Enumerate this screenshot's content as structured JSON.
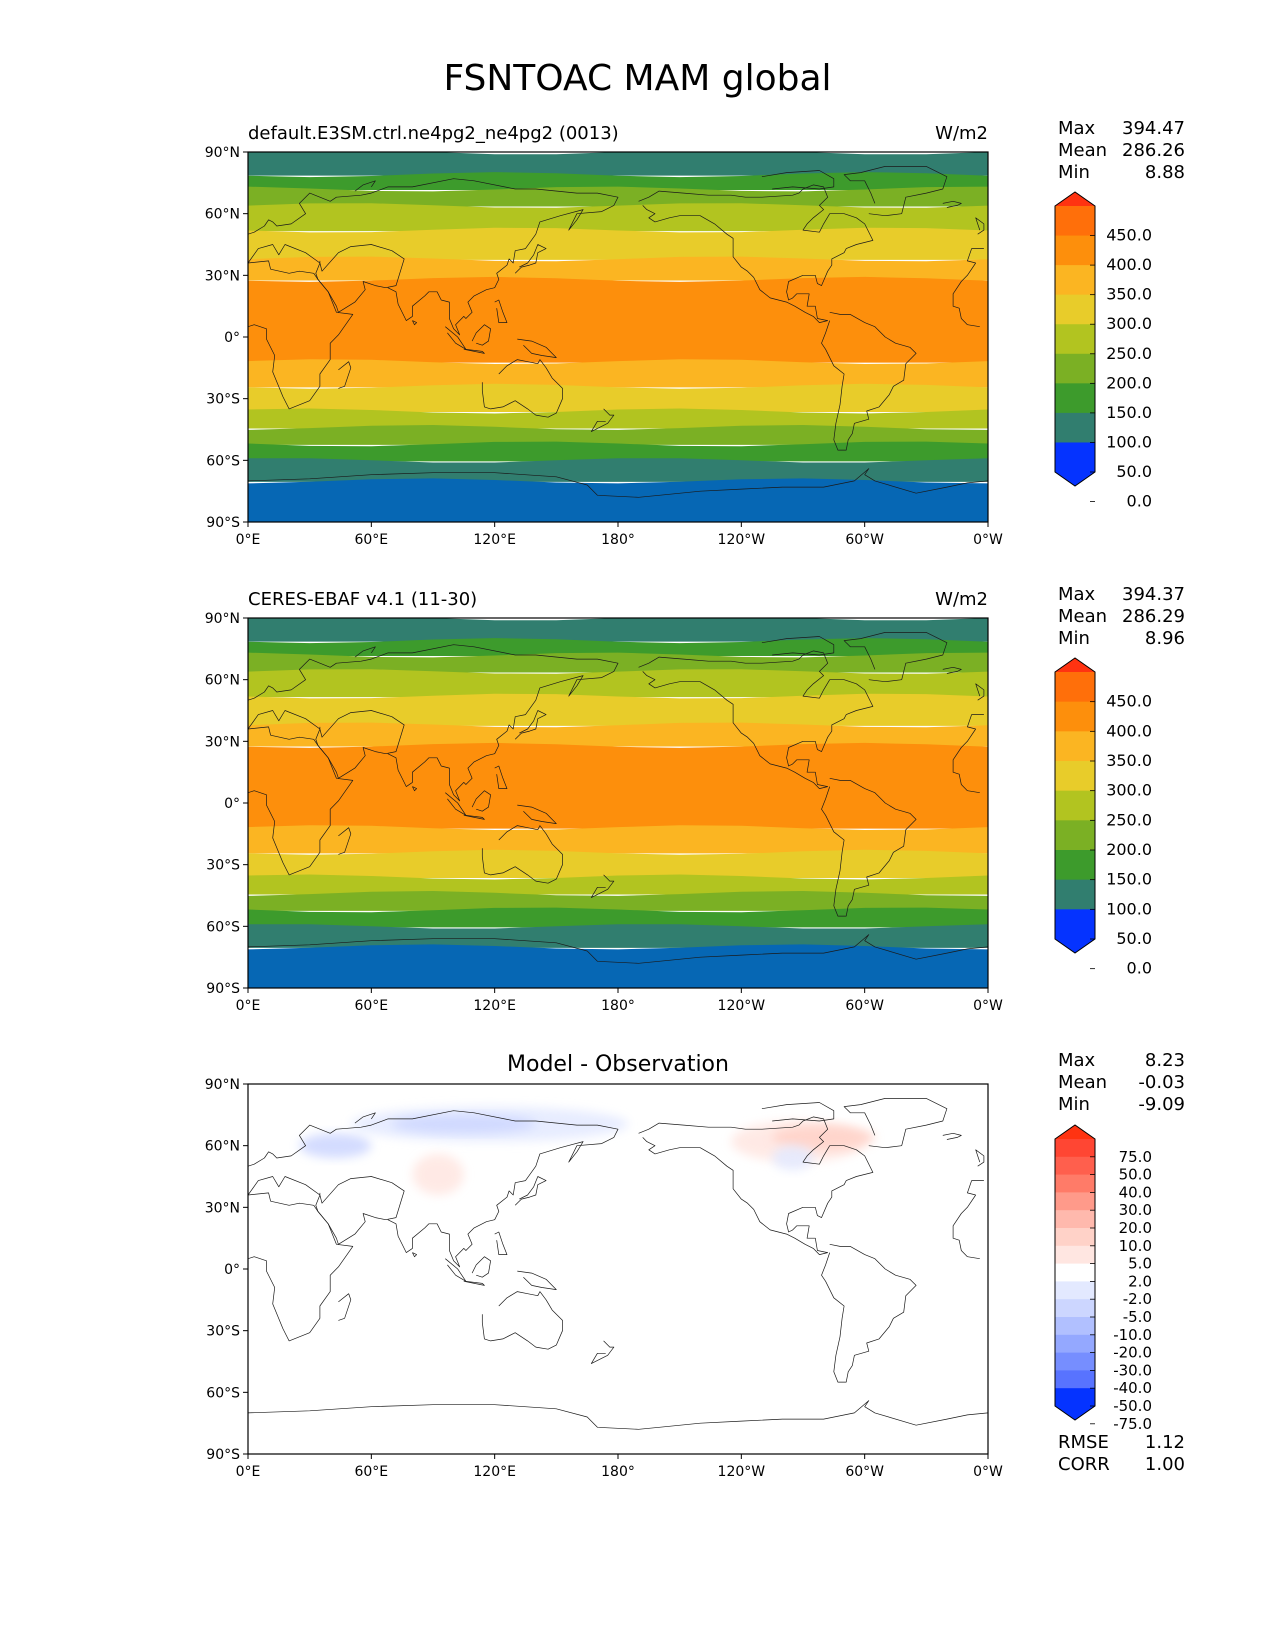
{
  "figure_title": "FSNTOAC MAM global",
  "x_ticks": [
    "0°E",
    "60°E",
    "120°E",
    "180°",
    "120°W",
    "60°W",
    "0°W"
  ],
  "y_ticks": [
    "90°N",
    "60°N",
    "30°N",
    "0°",
    "30°S",
    "60°S",
    "90°S"
  ],
  "panels": [
    {
      "title_left": "default.E3SM.ctrl.ne4pg2_ne4pg2 (0013)",
      "title_right": "W/m2",
      "title_center": "",
      "stats": [
        {
          "label": "Max",
          "value": "394.47"
        },
        {
          "label": "Mean",
          "value": "286.26"
        },
        {
          "label": "Min",
          "value": "8.88"
        }
      ],
      "colorbar": {
        "labels": [
          "450.0",
          "400.0",
          "350.0",
          "300.0",
          "250.0",
          "200.0",
          "150.0",
          "100.0",
          "50.0",
          "0.0"
        ],
        "colors": [
          "#ff3311",
          "#ff6f0a",
          "#fd8f0c",
          "#fbb522",
          "#e8cc2a",
          "#b2c420",
          "#7bb024",
          "#3d9b2c",
          "#317e6f",
          "#0667b4",
          "#0533ff"
        ]
      },
      "footer": []
    },
    {
      "title_left": "CERES-EBAF v4.1 (11-30)",
      "title_right": "W/m2",
      "title_center": "",
      "stats": [
        {
          "label": "Max",
          "value": "394.37"
        },
        {
          "label": "Mean",
          "value": "286.29"
        },
        {
          "label": "Min",
          "value": "8.96"
        }
      ],
      "colorbar": {
        "labels": [
          "450.0",
          "400.0",
          "350.0",
          "300.0",
          "250.0",
          "200.0",
          "150.0",
          "100.0",
          "50.0",
          "0.0"
        ],
        "colors": [
          "#ff3311",
          "#ff6f0a",
          "#fd8f0c",
          "#fbb522",
          "#e8cc2a",
          "#b2c420",
          "#7bb024",
          "#3d9b2c",
          "#317e6f",
          "#0667b4",
          "#0533ff"
        ]
      },
      "footer": []
    },
    {
      "title_left": "",
      "title_right": "",
      "title_center": "Model - Observation",
      "stats": [
        {
          "label": "Max",
          "value": "8.23"
        },
        {
          "label": "Mean",
          "value": "-0.03"
        },
        {
          "label": "Min",
          "value": "-9.09"
        }
      ],
      "colorbar": {
        "labels": [
          "75.0",
          "50.0",
          "40.0",
          "30.0",
          "20.0",
          "10.0",
          "5.0",
          "2.0",
          "-2.0",
          "-5.0",
          "-10.0",
          "-20.0",
          "-30.0",
          "-40.0",
          "-50.0",
          "-75.0"
        ],
        "colors": [
          "#ff3311",
          "#ff4633",
          "#ff5f4d",
          "#ff7b68",
          "#ff9a8a",
          "#ffb9ad",
          "#ffd2c8",
          "#ffe6e1",
          "#ffffff",
          "#e3e9ff",
          "#ccd6ff",
          "#b1c0ff",
          "#94a8ff",
          "#768eff",
          "#5873ff",
          "#3a56ff",
          "#0533ff"
        ]
      },
      "footer": [
        {
          "label": "RMSE",
          "value": "1.12"
        },
        {
          "label": "CORR",
          "value": "1.00"
        }
      ]
    }
  ],
  "chart_data": [
    {
      "type": "heatmap",
      "title": "default.E3SM.ctrl.ne4pg2_ne4pg2 (0013)",
      "units": "W/m2",
      "x_range": [
        "0°E",
        "0°W"
      ],
      "y_range": [
        -90,
        90
      ],
      "levels": [
        0,
        50,
        100,
        150,
        200,
        250,
        300,
        350,
        400,
        450
      ],
      "zonal_bands": [
        {
          "lat": [
            79,
            90
          ],
          "value": 75
        },
        {
          "lat": [
            72,
            79
          ],
          "value": 125
        },
        {
          "lat": [
            64,
            72
          ],
          "value": 175
        },
        {
          "lat": [
            52,
            64
          ],
          "value": 225
        },
        {
          "lat": [
            38,
            52
          ],
          "value": 275
        },
        {
          "lat": [
            28,
            38
          ],
          "value": 325
        },
        {
          "lat": [
            -12,
            28
          ],
          "value": 375
        },
        {
          "lat": [
            -24,
            -12
          ],
          "value": 325
        },
        {
          "lat": [
            -36,
            -24
          ],
          "value": 275
        },
        {
          "lat": [
            -44,
            -36
          ],
          "value": 225
        },
        {
          "lat": [
            -52,
            -44
          ],
          "value": 175
        },
        {
          "lat": [
            -60,
            -52
          ],
          "value": 125
        },
        {
          "lat": [
            -70,
            -60
          ],
          "value": 75
        },
        {
          "lat": [
            -90,
            -70
          ],
          "value": 25
        }
      ],
      "stats": {
        "max": 394.47,
        "mean": 286.26,
        "min": 8.88
      }
    },
    {
      "type": "heatmap",
      "title": "CERES-EBAF v4.1 (11-30)",
      "units": "W/m2",
      "x_range": [
        "0°E",
        "0°W"
      ],
      "y_range": [
        -90,
        90
      ],
      "levels": [
        0,
        50,
        100,
        150,
        200,
        250,
        300,
        350,
        400,
        450
      ],
      "zonal_bands": [
        {
          "lat": [
            79,
            90
          ],
          "value": 75
        },
        {
          "lat": [
            72,
            79
          ],
          "value": 125
        },
        {
          "lat": [
            64,
            72
          ],
          "value": 175
        },
        {
          "lat": [
            52,
            64
          ],
          "value": 225
        },
        {
          "lat": [
            38,
            52
          ],
          "value": 275
        },
        {
          "lat": [
            28,
            38
          ],
          "value": 325
        },
        {
          "lat": [
            -12,
            28
          ],
          "value": 375
        },
        {
          "lat": [
            -24,
            -12
          ],
          "value": 325
        },
        {
          "lat": [
            -36,
            -24
          ],
          "value": 275
        },
        {
          "lat": [
            -44,
            -36
          ],
          "value": 225
        },
        {
          "lat": [
            -52,
            -44
          ],
          "value": 175
        },
        {
          "lat": [
            -60,
            -52
          ],
          "value": 125
        },
        {
          "lat": [
            -70,
            -60
          ],
          "value": 75
        },
        {
          "lat": [
            -90,
            -70
          ],
          "value": 25
        }
      ],
      "stats": {
        "max": 394.37,
        "mean": 286.29,
        "min": 8.96
      }
    },
    {
      "type": "heatmap",
      "title": "Model - Observation",
      "x_range": [
        "0°E",
        "0°W"
      ],
      "y_range": [
        -90,
        90
      ],
      "levels": [
        -75,
        -50,
        -40,
        -30,
        -20,
        -10,
        -5,
        -2,
        2,
        5,
        10,
        20,
        30,
        40,
        50,
        75
      ],
      "anomalies": [
        {
          "lon": [
            50,
            185
          ],
          "lat": [
            62,
            79
          ],
          "value": -3.5
        },
        {
          "lon": [
            70,
            140
          ],
          "lat": [
            66,
            75
          ],
          "value": -7
        },
        {
          "lon": [
            25,
            60
          ],
          "lat": [
            54,
            66
          ],
          "value": -6
        },
        {
          "lon": [
            235,
            300
          ],
          "lat": [
            52,
            72
          ],
          "value": 3.5
        },
        {
          "lon": [
            255,
            305
          ],
          "lat": [
            58,
            70
          ],
          "value": 7
        },
        {
          "lon": [
            80,
            105
          ],
          "lat": [
            36,
            56
          ],
          "value": 3
        },
        {
          "lon": [
            255,
            275
          ],
          "lat": [
            48,
            60
          ],
          "value": -3.5
        }
      ],
      "stats": {
        "max": 8.23,
        "mean": -0.03,
        "min": -9.09,
        "rmse": 1.12,
        "corr": 1.0
      }
    }
  ]
}
